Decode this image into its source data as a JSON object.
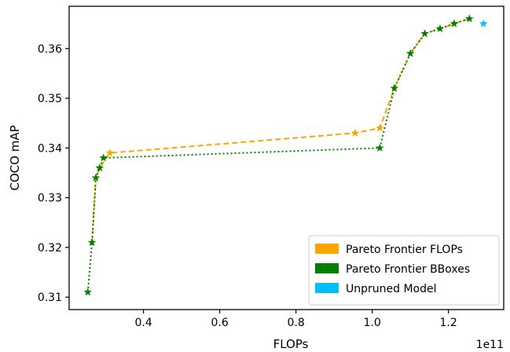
{
  "chart_data": {
    "type": "line",
    "title": "",
    "xlabel": "FLOPs",
    "ylabel": "COCO mAP",
    "x_offset_label": "1e11",
    "xlim": [
      0.205,
      1.345
    ],
    "ylim": [
      0.3075,
      0.3685
    ],
    "x_ticks": [
      0.4,
      0.6,
      0.8,
      1.0,
      1.2
    ],
    "x_tick_labels": [
      "0.4",
      "0.6",
      "0.8",
      "1.0",
      "1.2"
    ],
    "y_ticks": [
      0.31,
      0.32,
      0.33,
      0.34,
      0.35,
      0.36
    ],
    "y_tick_labels": [
      "0.31",
      "0.32",
      "0.33",
      "0.34",
      "0.35",
      "0.36"
    ],
    "grid": false,
    "legend_position": "lower-right",
    "series": [
      {
        "name": "Pareto Frontier FLOPs",
        "color": "#FFA500",
        "line_style": "dashed",
        "marker": "star",
        "x": [
          0.265,
          0.275,
          0.285,
          0.312,
          0.955,
          1.02,
          1.058,
          1.1,
          1.138,
          1.178,
          1.215,
          1.255
        ],
        "y": [
          0.321,
          0.334,
          0.336,
          0.339,
          0.343,
          0.344,
          0.352,
          0.359,
          0.363,
          0.364,
          0.365,
          0.366
        ]
      },
      {
        "name": "Pareto Frontier BBoxes",
        "color": "#008000",
        "line_style": "dotted",
        "marker": "star",
        "x": [
          0.254,
          0.265,
          0.275,
          0.285,
          0.295,
          1.02,
          1.058,
          1.1,
          1.138,
          1.178,
          1.215,
          1.255
        ],
        "y": [
          0.311,
          0.321,
          0.334,
          0.336,
          0.338,
          0.34,
          0.352,
          0.359,
          0.363,
          0.364,
          0.365,
          0.366
        ]
      },
      {
        "name": "Unpruned Model",
        "color": "#00BFFF",
        "line_style": "none",
        "marker": "star",
        "x": [
          1.292
        ],
        "y": [
          0.365
        ]
      }
    ]
  }
}
